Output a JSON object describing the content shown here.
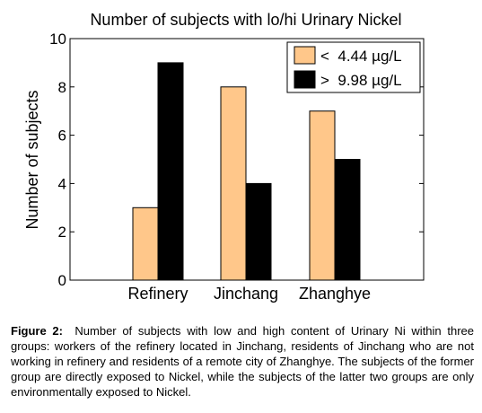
{
  "chart_data": {
    "type": "bar",
    "title": "Number of subjects with lo/hi Urinary Nickel",
    "xlabel": "",
    "ylabel": "Number of subjects",
    "categories": [
      "Refinery",
      "Jinchang",
      "Zhanghye"
    ],
    "series": [
      {
        "name": "<  4.44 µg/L",
        "values": [
          3,
          8,
          7
        ],
        "color": "#FFC78A"
      },
      {
        "name": ">  9.98 µg/L",
        "values": [
          9,
          4,
          5
        ],
        "color": "#000000"
      }
    ],
    "ylim": [
      0,
      10
    ],
    "yticks": [
      0,
      2,
      4,
      6,
      8,
      10
    ],
    "grid": false,
    "legend_position": "top-right"
  },
  "caption": {
    "label": "Figure 2:",
    "text": "Number of subjects with low and high content of Urinary Ni within three groups: workers of the refinery located in Jinchang, residents of Jinchang who are not working in refinery and residents of a remote city of Zhanghye. The subjects of the former group are directly exposed to Nickel, while the subjects of the latter two groups are only environmentally exposed to Nickel."
  }
}
